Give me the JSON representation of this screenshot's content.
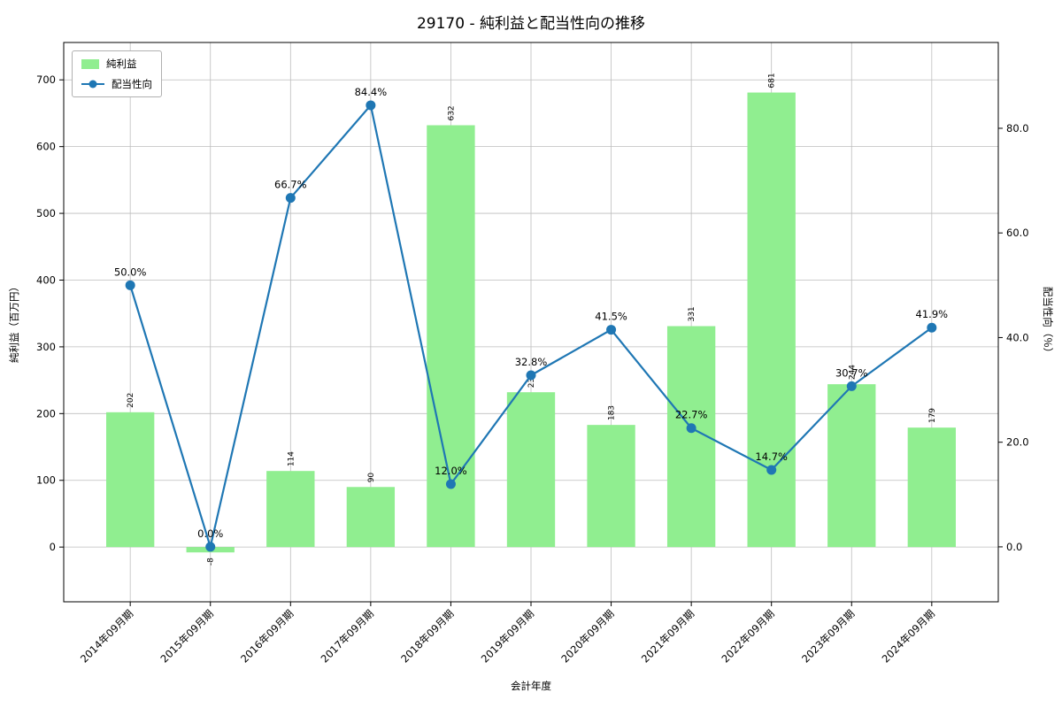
{
  "title": "29170 - 純利益と配当性向の推移",
  "legend": {
    "bar_label": "純利益",
    "line_label": "配当性向"
  },
  "axes": {
    "x_label": "会計年度",
    "y_left_label": "純利益（百万円）",
    "y_right_label": "配当性向（％）",
    "y_left_ticks": [
      "0",
      "100",
      "200",
      "300",
      "400",
      "500",
      "600",
      "700"
    ],
    "y_left_tick_values": [
      0,
      100,
      200,
      300,
      400,
      500,
      600,
      700
    ],
    "y_right_ticks": [
      "0.0",
      "20.0",
      "40.0",
      "60.0",
      "80.0"
    ],
    "y_right_tick_values": [
      0,
      20,
      40,
      60,
      80
    ]
  },
  "colors": {
    "bar": "#90ee90",
    "line": "#1f77b4",
    "pct_label": "#1f77b4",
    "grid": "#bdbdbd",
    "axis": "#000000"
  },
  "chart_data": {
    "type": "bar+line",
    "title": "29170 - 純利益と配当性向の推移",
    "xlabel": "会計年度",
    "ylabel_left": "純利益（百万円）",
    "ylabel_right": "配当性向（％）",
    "categories": [
      "2014年09月期",
      "2015年09月期",
      "2016年09月期",
      "2017年09月期",
      "2018年09月期",
      "2019年09月期",
      "2020年09月期",
      "2021年09月期",
      "2022年09月期",
      "2023年09月期",
      "2024年09月期"
    ],
    "series": [
      {
        "name": "純利益",
        "type": "bar",
        "axis": "left",
        "values": [
          202,
          -8,
          114,
          90,
          632,
          232,
          183,
          331,
          681,
          244,
          179
        ],
        "labels": [
          "202",
          "-8",
          "114",
          "90",
          "632",
          "232",
          "183",
          "331",
          "681",
          "244",
          "179"
        ]
      },
      {
        "name": "配当性向",
        "type": "line",
        "axis": "right",
        "values": [
          50.0,
          0.0,
          66.7,
          84.4,
          12.0,
          32.8,
          41.5,
          22.7,
          14.7,
          30.7,
          41.9
        ],
        "labels": [
          "50.0%",
          "0.0%",
          "66.7%",
          "84.4%",
          "12.0%",
          "32.8%",
          "41.5%",
          "22.7%",
          "14.7%",
          "30.7%",
          "41.9%"
        ]
      }
    ],
    "y_left_range": [
      -82,
      756
    ],
    "y_right_range": [
      -10.5,
      96.4
    ],
    "grid": true,
    "legend_position": "upper left"
  }
}
